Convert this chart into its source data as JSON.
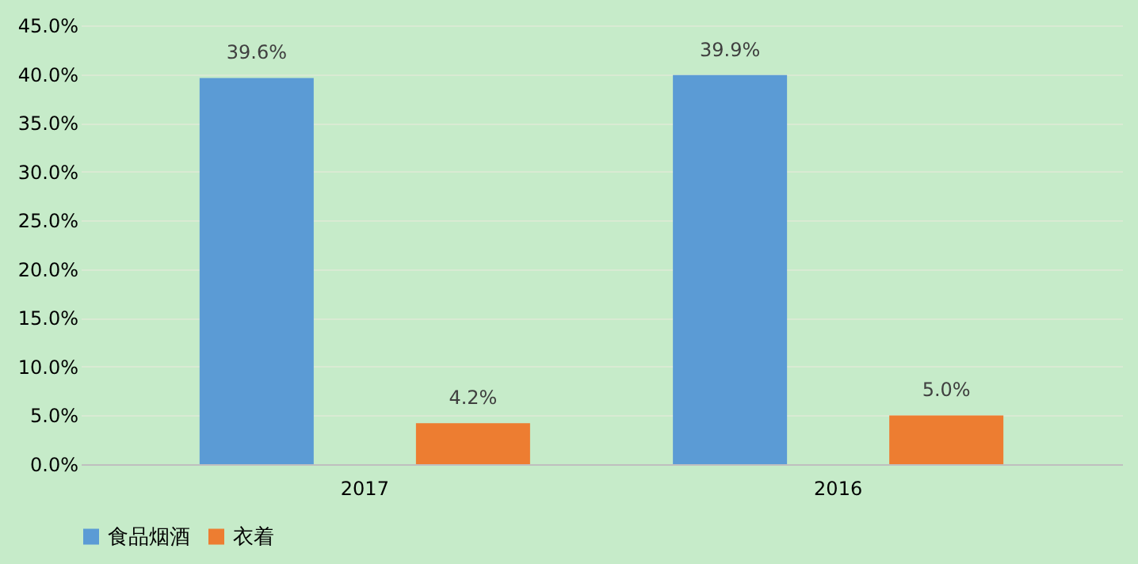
{
  "chart_data": {
    "type": "bar",
    "categories": [
      "2017",
      "2016"
    ],
    "series": [
      {
        "name": "食品烟酒",
        "color": "#5b9bd5",
        "values": [
          39.6,
          39.9
        ],
        "value_labels": [
          "39.6%",
          "39.9%"
        ]
      },
      {
        "name": "衣着",
        "color": "#ed7d31",
        "values": [
          4.2,
          5.0
        ],
        "value_labels": [
          "4.2%",
          "5.0%"
        ]
      }
    ],
    "ylim": [
      0,
      45
    ],
    "yticks": [
      {
        "value": 0,
        "label": "0.0%"
      },
      {
        "value": 5,
        "label": "5.0%"
      },
      {
        "value": 10,
        "label": "10.0%"
      },
      {
        "value": 15,
        "label": "15.0%"
      },
      {
        "value": 20,
        "label": "20.0%"
      },
      {
        "value": 25,
        "label": "25.0%"
      },
      {
        "value": 30,
        "label": "30.0%"
      },
      {
        "value": 35,
        "label": "35.0%"
      },
      {
        "value": 40,
        "label": "40.0%"
      },
      {
        "value": 45,
        "label": "45.0%"
      }
    ],
    "grid": "y",
    "legend": "bottom"
  }
}
